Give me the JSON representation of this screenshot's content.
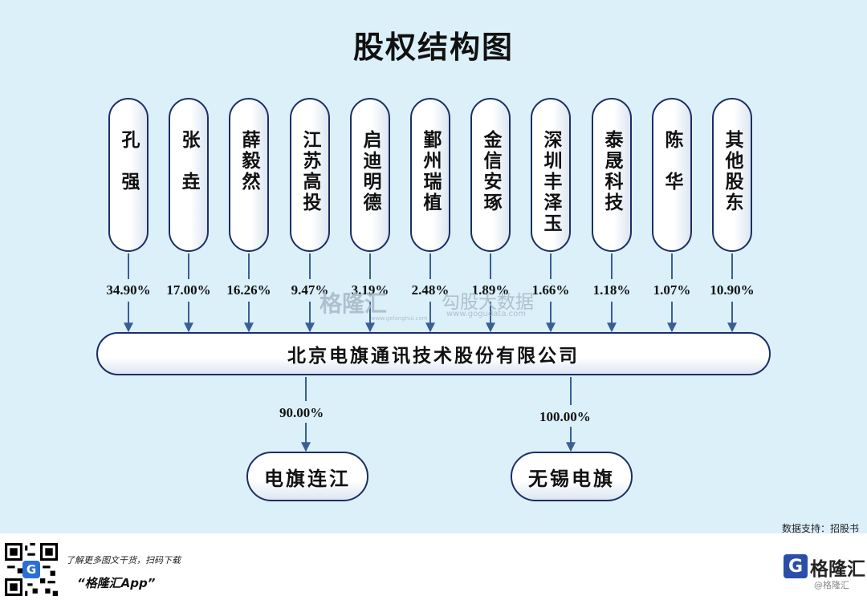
{
  "title": "股权结构图",
  "shareholders": [
    {
      "name": "孔　强",
      "pct": "34.90%"
    },
    {
      "name": "张　垚",
      "pct": "17.00%"
    },
    {
      "name": "薛毅然",
      "pct": "16.26%"
    },
    {
      "name": "江苏高投",
      "pct": "9.47%"
    },
    {
      "name": "启迪明德",
      "pct": "3.19%"
    },
    {
      "name": "鄞州瑞植",
      "pct": "2.48%"
    },
    {
      "name": "金信安琢",
      "pct": "1.89%"
    },
    {
      "name": "深圳丰泽玉",
      "pct": "1.66%"
    },
    {
      "name": "泰晟科技",
      "pct": "1.18%"
    },
    {
      "name": "陈　华",
      "pct": "1.07%"
    },
    {
      "name": "其他股东",
      "pct": "10.90%"
    }
  ],
  "company": "北京电旗通讯技术股份有限公司",
  "subsidiaries": [
    {
      "name": "电旗连江",
      "pct": "90.00%"
    },
    {
      "name": "无锡电旗",
      "pct": "100.00%"
    }
  ],
  "source": "数据支持：招股书",
  "watermarks": {
    "gelonghui": "格隆汇",
    "gelonghui_url": "www.gelonghui.com",
    "gogudata": "勾股大数据",
    "gogudata_url": "www.gogudata.com"
  },
  "footer": {
    "promo": "了解更多图文干货，扫码下载",
    "app": "“格隆汇App”",
    "qr_badge": "G",
    "logo_letter": "G",
    "logo_text": "格隆汇",
    "logo_watermark": "@格隆汇"
  },
  "colors": {
    "background": "#dcf0f9",
    "border": "#1b2f63",
    "arrow": "#3a5f95"
  }
}
